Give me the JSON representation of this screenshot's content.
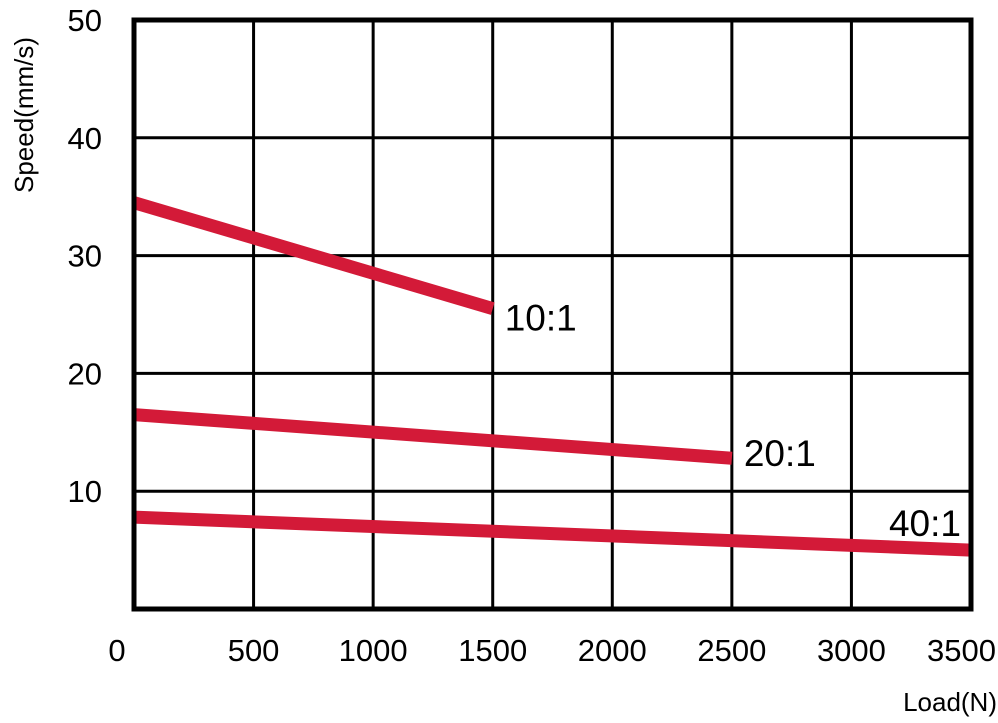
{
  "chart_data": {
    "type": "line",
    "xlabel": "Load(N)",
    "ylabel": "Speed(mm/s)",
    "xlim": [
      0,
      3500
    ],
    "ylim": [
      0,
      50
    ],
    "x_ticks": [
      "0",
      "500",
      "1000",
      "1500",
      "2000",
      "2500",
      "3000",
      "3500"
    ],
    "y_ticks": [
      "10",
      "20",
      "30",
      "40",
      "50"
    ],
    "grid": true,
    "line_color": "#d31a38",
    "series": [
      {
        "name": "10:1",
        "x": [
          0,
          1500
        ],
        "y": [
          34.5,
          25.5
        ]
      },
      {
        "name": "20:1",
        "x": [
          0,
          2500
        ],
        "y": [
          16.5,
          12.8
        ]
      },
      {
        "name": "40:1",
        "x": [
          0,
          3500
        ],
        "y": [
          7.8,
          5.0
        ]
      }
    ]
  }
}
